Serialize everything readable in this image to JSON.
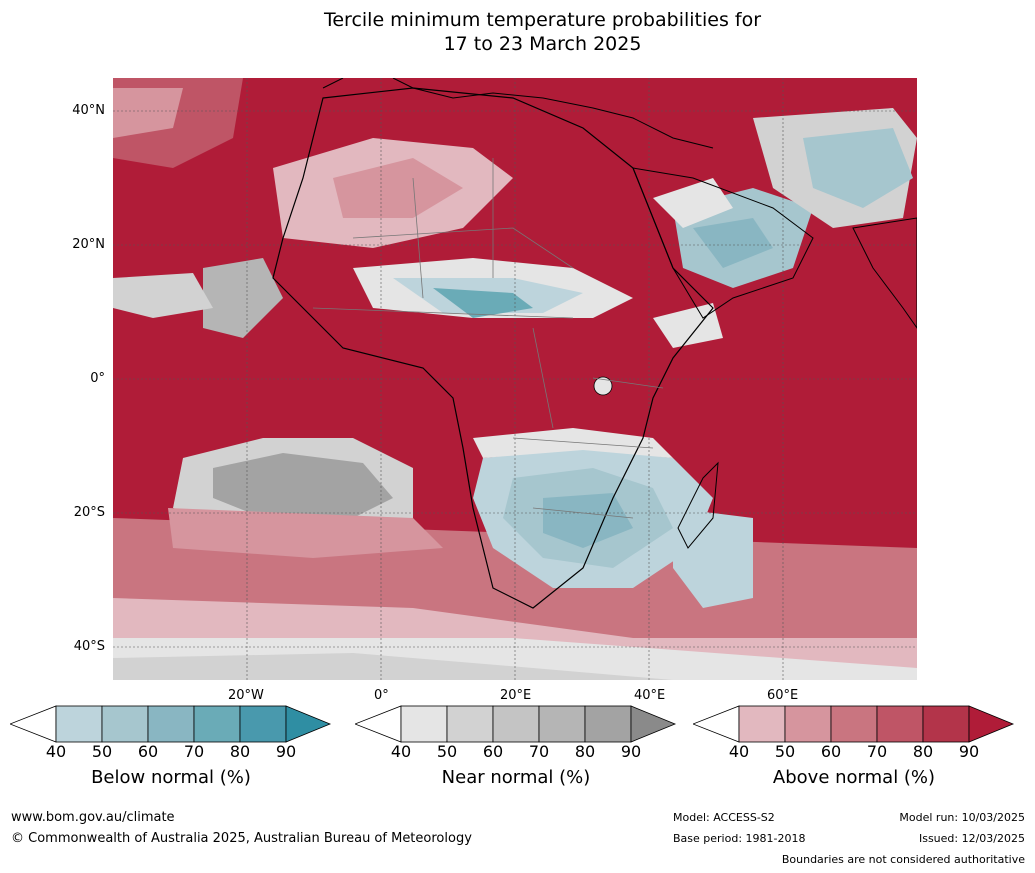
{
  "title_line1": "Tercile minimum temperature probabilities for",
  "title_line2": "17 to 23 March 2025",
  "lat_labels": [
    "40°N",
    "20°N",
    "0°",
    "20°S",
    "40°S"
  ],
  "lon_labels": [
    "20°W",
    "0°",
    "20°E",
    "40°E",
    "60°E"
  ],
  "colorbars": [
    {
      "title": "Below normal (%)",
      "ticks": [
        "40",
        "50",
        "60",
        "70",
        "80",
        "90"
      ],
      "colors": [
        "#ffffff",
        "#bdd4dc",
        "#a6c6ce",
        "#89b6c2",
        "#6aabb7",
        "#4999ad",
        "#2f8ea3"
      ]
    },
    {
      "title": "Near normal (%)",
      "ticks": [
        "40",
        "50",
        "60",
        "70",
        "80",
        "90"
      ],
      "colors": [
        "#ffffff",
        "#e5e5e5",
        "#d2d2d2",
        "#c4c4c4",
        "#b5b5b5",
        "#a3a3a3",
        "#8a8a8a"
      ]
    },
    {
      "title": "Above normal (%)",
      "ticks": [
        "40",
        "50",
        "60",
        "70",
        "80",
        "90"
      ],
      "colors": [
        "#ffffff",
        "#e2b8bf",
        "#d6959e",
        "#c97580",
        "#bf5566",
        "#b3344a",
        "#b01c38"
      ]
    }
  ],
  "footer": {
    "url": "www.bom.gov.au/climate",
    "copyright": "© Commonwealth of Australia 2025, Australian Bureau of Meteorology",
    "model": "Model: ACCESS-S2",
    "base_period": "Base period: 1981-2018",
    "model_run": "Model run: 10/03/2025",
    "issued": "Issued: 12/03/2025",
    "disclaimer": "Boundaries are not considered authoritative"
  }
}
